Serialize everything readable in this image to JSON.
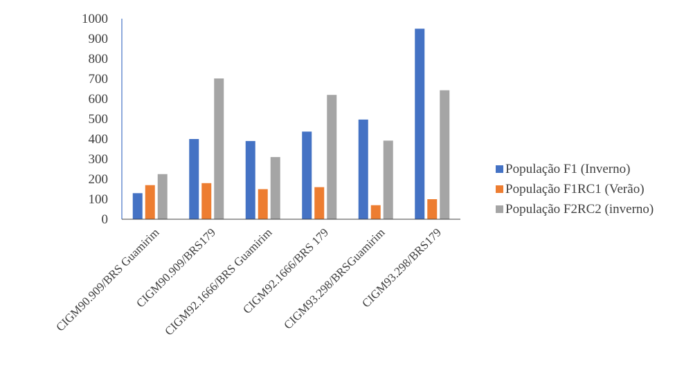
{
  "chart_data": {
    "type": "bar",
    "title": "",
    "xlabel": "",
    "ylabel": "",
    "ylim": [
      0,
      1000
    ],
    "ytick_step": 100,
    "grid": false,
    "legend_position": "right",
    "categories": [
      "CIGM90.909/BRS Guamirim",
      "CIGM90.909/BRS179",
      "CIGM92.1666/BRS Guamirim",
      "CIGM92.1666/BRS 179",
      "CIGM93.298/BRSGuamirim",
      "CIGM93.298/BRS179"
    ],
    "series": [
      {
        "name": "População F1 (Inverno)",
        "color": "#4472C4",
        "values": [
          130,
          400,
          390,
          437,
          497,
          950
        ]
      },
      {
        "name": "População F1RC1 (Verão)",
        "color": "#ED7D31",
        "values": [
          170,
          180,
          150,
          160,
          70,
          100
        ]
      },
      {
        "name": "População F2RC2 (inverno)",
        "color": "#A5A5A5",
        "values": [
          225,
          702,
          310,
          620,
          392,
          643
        ]
      }
    ]
  }
}
